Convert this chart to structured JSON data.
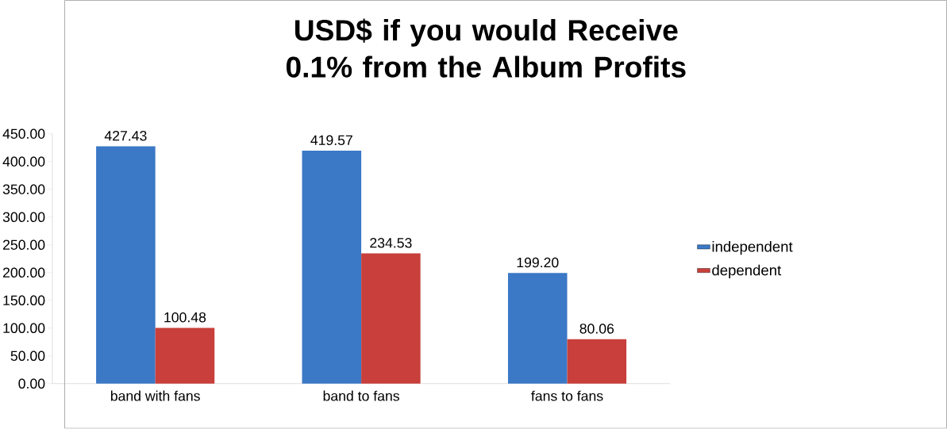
{
  "chart_data": {
    "type": "bar",
    "title": "USD$ if you would Receive 0.1% from the Album Profits",
    "categories": [
      "band with fans",
      "band to fans",
      "fans to fans"
    ],
    "series": [
      {
        "name": "independent",
        "color": "#3b78c6",
        "values": [
          427.43,
          419.57,
          199.2
        ],
        "value_labels": [
          "427.43",
          "419.57",
          "199.20"
        ]
      },
      {
        "name": "dependent",
        "color": "#c83f3b",
        "values": [
          100.48,
          234.53,
          80.06
        ],
        "value_labels": [
          "100.48",
          "234.53",
          "80.06"
        ]
      }
    ],
    "ylim": [
      0,
      450
    ],
    "yticks": [
      {
        "value": 0,
        "label": "0.00"
      },
      {
        "value": 50,
        "label": "50.00"
      },
      {
        "value": 100,
        "label": "100.00"
      },
      {
        "value": 150,
        "label": "150.00"
      },
      {
        "value": 200,
        "label": "200.00"
      },
      {
        "value": 250,
        "label": "250.00"
      },
      {
        "value": 300,
        "label": "300.00"
      },
      {
        "value": 350,
        "label": "350.00"
      },
      {
        "value": 400,
        "label": "400.00"
      },
      {
        "value": 450,
        "label": "450.00"
      }
    ],
    "grid": false,
    "legend": "right"
  }
}
